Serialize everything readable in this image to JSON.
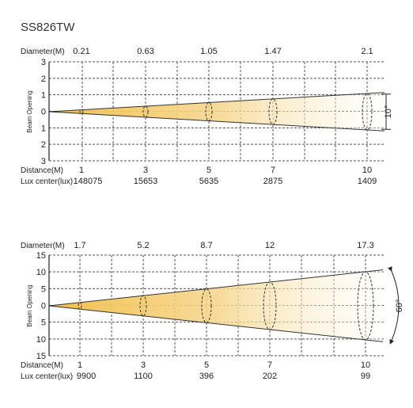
{
  "title": "SS826TW",
  "diagrams": [
    {
      "diameter_label": "Diameter(M)",
      "diameters": [
        "0.21",
        "0.63",
        "1.05",
        "1.47",
        "2.1"
      ],
      "yaxis_label": "Beam Opening",
      "yticks": [
        "3",
        "2",
        "1",
        "0",
        "1",
        "2",
        "3"
      ],
      "distance_label": "Distance(M)",
      "distances": [
        "1",
        "3",
        "5",
        "7",
        "10"
      ],
      "lux_label": "Lux center(lux)",
      "lux": [
        "148075",
        "15653",
        "5635",
        "2875",
        "1409"
      ],
      "angle_label": "10°"
    },
    {
      "diameter_label": "Diameter(M)",
      "diameters": [
        "1.7",
        "5.2",
        "8.7",
        "12",
        "17.3"
      ],
      "yaxis_label": "Beam Opening",
      "yticks": [
        "15",
        "10",
        "5",
        "0",
        "5",
        "10",
        "15"
      ],
      "distance_label": "Distance(M)",
      "distances": [
        "1",
        "3",
        "5",
        "7",
        "10"
      ],
      "lux_label": "Lux center(lux)",
      "lux": [
        "9900",
        "1100",
        "396",
        "202",
        "99"
      ],
      "angle_label": "60°"
    }
  ],
  "colors": {
    "beam": "#f2c04a",
    "grid": "#555555",
    "axis": "#222222"
  }
}
